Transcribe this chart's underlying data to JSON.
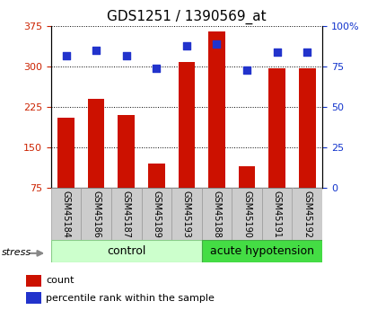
{
  "title": "GDS1251 / 1390569_at",
  "categories": [
    "GSM45184",
    "GSM45186",
    "GSM45187",
    "GSM45189",
    "GSM45193",
    "GSM45188",
    "GSM45190",
    "GSM45191",
    "GSM45192"
  ],
  "counts": [
    205,
    240,
    210,
    120,
    308,
    365,
    115,
    297,
    297
  ],
  "percentiles": [
    82,
    85,
    82,
    74,
    88,
    89,
    73,
    84,
    84
  ],
  "ylim_left": [
    75,
    375
  ],
  "ylim_right": [
    0,
    100
  ],
  "yticks_left": [
    75,
    150,
    225,
    300,
    375
  ],
  "yticks_right": [
    0,
    25,
    50,
    75,
    100
  ],
  "bar_color": "#cc1100",
  "dot_color": "#2233cc",
  "title_fontsize": 11,
  "tick_fontsize": 8,
  "label_fontsize": 9,
  "stress_label": "stress",
  "background_color": "#ffffff",
  "yaxis_left_color": "#cc2200",
  "yaxis_right_color": "#1133cc",
  "ctrl_color_light": "#ccffcc",
  "ctrl_color_dark": "#88ee88",
  "ah_color": "#44dd44",
  "label_box_color": "#cccccc",
  "label_box_edge": "#999999"
}
